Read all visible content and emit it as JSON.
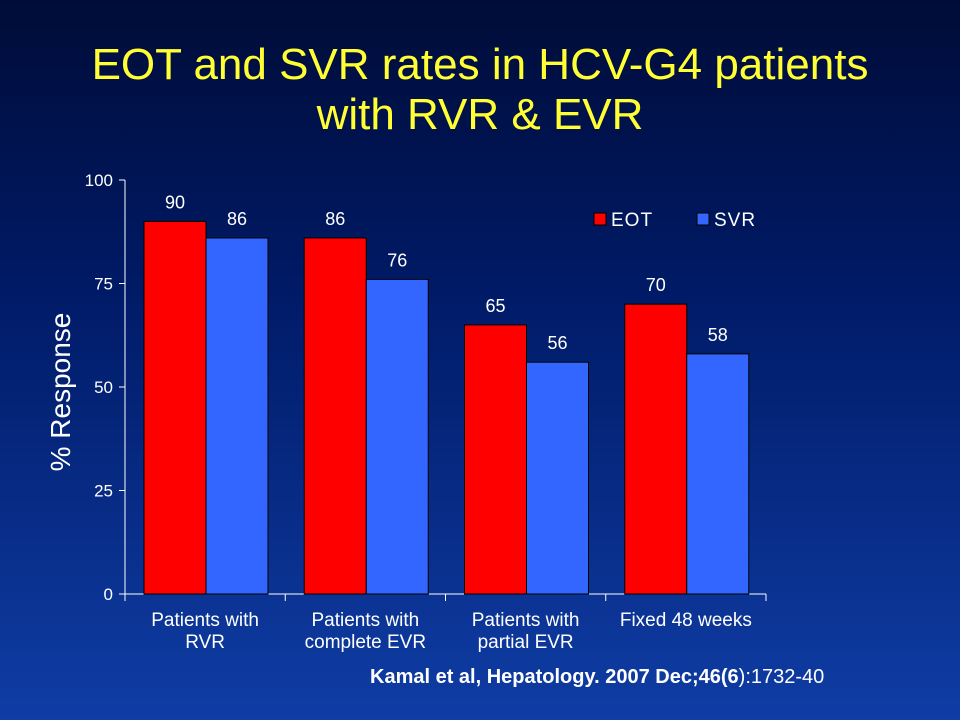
{
  "title": {
    "line1": "EOT and SVR rates in HCV-G4 patients",
    "line2": "with RVR & EVR"
  },
  "citation": {
    "bold": "Kamal et al, Hepatology. 2007 Dec;46(6",
    "rest": "):1732-40"
  },
  "colors": {
    "background_top": "#000c38",
    "background_bottom": "#0f3da5",
    "title": "#ffff33",
    "eot": "#ff0000",
    "svr": "#3366ff",
    "axis": "#ffffff"
  },
  "chart_data": {
    "type": "bar",
    "title": "",
    "ylabel": "% Response",
    "xlabel": "",
    "ylim": [
      0,
      100
    ],
    "yticks": [
      0,
      25,
      50,
      75,
      100
    ],
    "grid": false,
    "legend_position": "top-right",
    "categories": [
      [
        "Patients with",
        "RVR"
      ],
      [
        "Patients with",
        "complete EVR"
      ],
      [
        "Patients with",
        "partial EVR"
      ],
      [
        "Fixed 48 weeks"
      ]
    ],
    "series": [
      {
        "name": "EOT",
        "color": "#ff0000",
        "values": [
          90,
          86,
          65,
          70
        ]
      },
      {
        "name": "SVR",
        "color": "#3366ff",
        "values": [
          86,
          76,
          56,
          58
        ]
      }
    ]
  }
}
